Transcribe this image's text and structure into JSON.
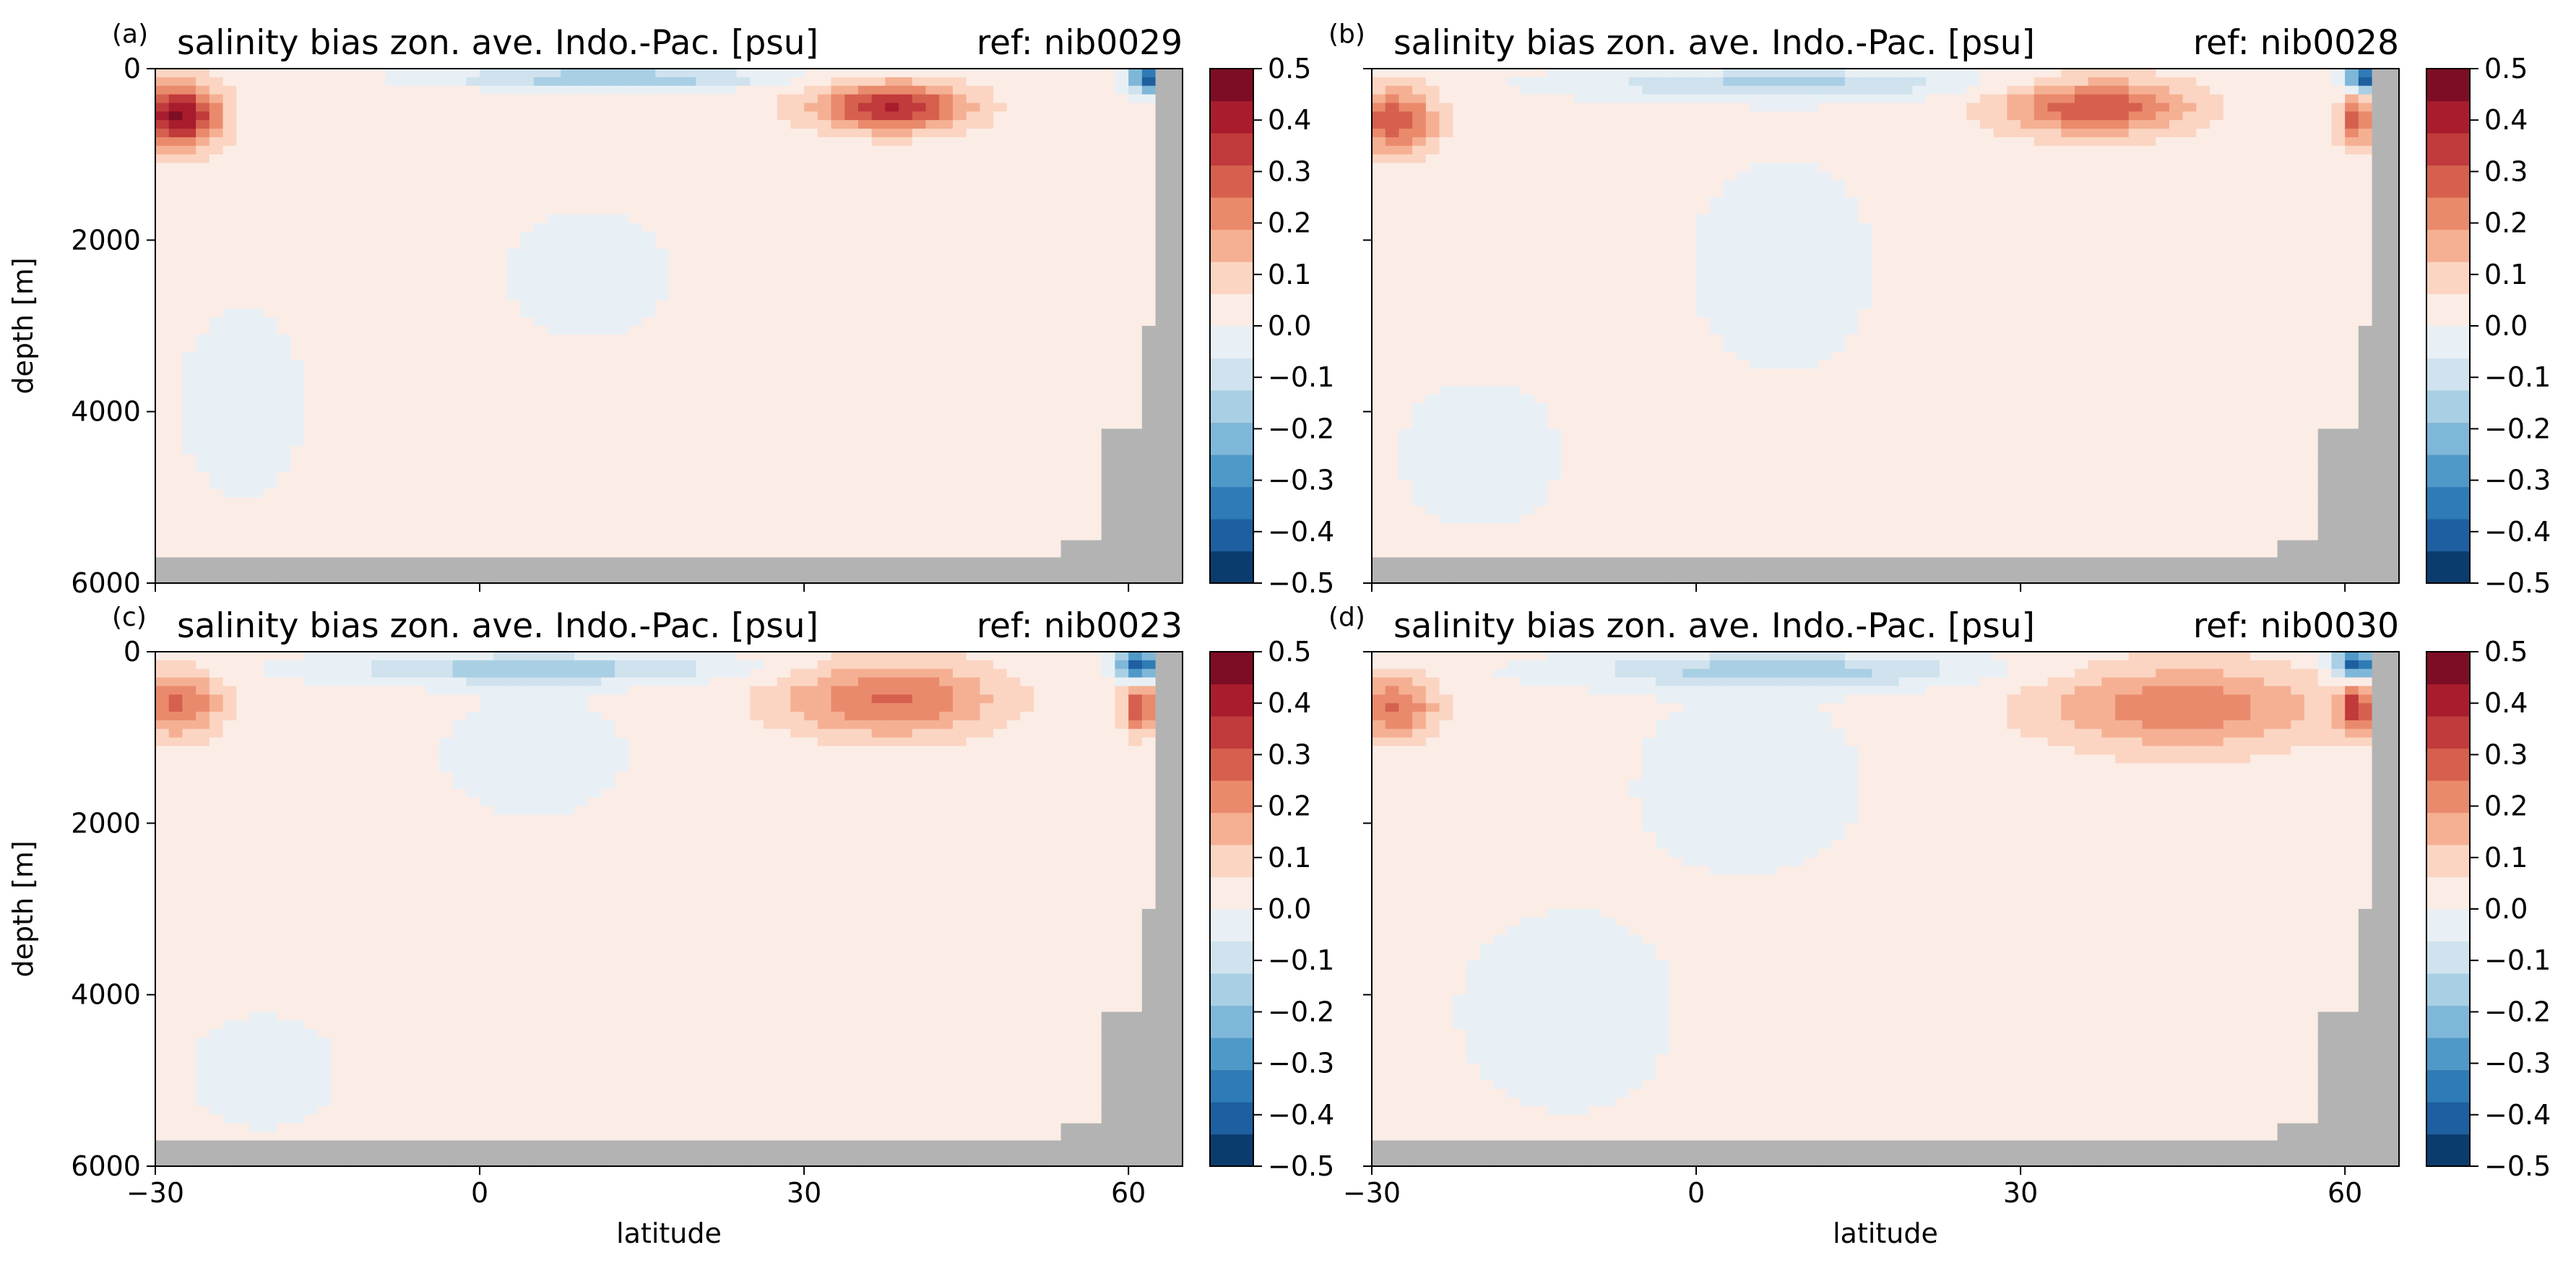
{
  "figure": {
    "panels": [
      {
        "letter": "(a)",
        "title": "salinity bias zon. ave. Indo.-Pac. [psu]",
        "ref": "ref: nib0029"
      },
      {
        "letter": "(b)",
        "title": "salinity bias zon. ave. Indo.-Pac. [psu]",
        "ref": "ref: nib0028"
      },
      {
        "letter": "(c)",
        "title": "salinity bias zon. ave. Indo.-Pac. [psu]",
        "ref": "ref: nib0023"
      },
      {
        "letter": "(d)",
        "title": "salinity bias zon. ave. Indo.-Pac. [psu]",
        "ref": "ref: nib0030"
      }
    ],
    "xlabel": "latitude",
    "ylabel": "depth [m]"
  },
  "chart_data": {
    "type": "heatmap",
    "xlim": [
      -30,
      65
    ],
    "ylim": [
      6000,
      0
    ],
    "xticks": [
      -30,
      0,
      30,
      60
    ],
    "yticks": [
      0,
      2000,
      4000,
      6000
    ],
    "colorbar": {
      "range": [
        -0.5,
        0.5
      ],
      "ticks": [
        "0.5",
        "0.4",
        "0.3",
        "0.2",
        "0.1",
        "0.0",
        "−0.1",
        "−0.2",
        "−0.3",
        "−0.4",
        "−0.5"
      ],
      "levels": [
        "#0b3c6e",
        "#1d5fa0",
        "#2f7bb6",
        "#4f99c8",
        "#7fb7d8",
        "#a9cfe4",
        "#cfe2ee",
        "#e8f0f5",
        "#fbece6",
        "#fbd5c2",
        "#f5b093",
        "#ea8a6c",
        "#d6604e",
        "#c13a3c",
        "#a81c2e",
        "#7d0d24"
      ]
    },
    "land_color": "#b3b3b3",
    "panels": [
      {
        "id": "a",
        "background": 0.02,
        "blobs": [
          {
            "lat": -28,
            "depth": 550,
            "wlat": 4,
            "wdepth": 380,
            "v": 0.42
          },
          {
            "lat": 38,
            "depth": 450,
            "wlat": 7,
            "wdepth": 280,
            "v": 0.36
          },
          {
            "lat": 12,
            "depth": 110,
            "wlat": 14,
            "wdepth": 110,
            "v": -0.22
          },
          {
            "lat": 10,
            "depth": 2400,
            "wlat": 9,
            "wdepth": 900,
            "v": -0.04
          },
          {
            "lat": -22,
            "depth": 3900,
            "wlat": 7,
            "wdepth": 1300,
            "v": -0.04
          },
          {
            "lat": 62,
            "depth": 120,
            "wlat": 2,
            "wdepth": 150,
            "v": -0.45
          }
        ]
      },
      {
        "id": "b",
        "background": 0.02,
        "blobs": [
          {
            "lat": -28,
            "depth": 600,
            "wlat": 4,
            "wdepth": 380,
            "v": 0.28
          },
          {
            "lat": 37,
            "depth": 450,
            "wlat": 9,
            "wdepth": 330,
            "v": 0.28
          },
          {
            "lat": 8,
            "depth": 180,
            "wlat": 18,
            "wdepth": 170,
            "v": -0.16
          },
          {
            "lat": 8,
            "depth": 2300,
            "wlat": 10,
            "wdepth": 1500,
            "v": -0.04
          },
          {
            "lat": -20,
            "depth": 4500,
            "wlat": 9,
            "wdepth": 1000,
            "v": -0.04
          },
          {
            "lat": 62,
            "depth": 120,
            "wlat": 2,
            "wdepth": 150,
            "v": -0.45
          },
          {
            "lat": 61,
            "depth": 600,
            "wlat": 1.5,
            "wdepth": 300,
            "v": 0.3
          }
        ]
      },
      {
        "id": "c",
        "background": 0.02,
        "blobs": [
          {
            "lat": -28,
            "depth": 600,
            "wlat": 4,
            "wdepth": 380,
            "v": 0.25
          },
          {
            "lat": 38,
            "depth": 550,
            "wlat": 10,
            "wdepth": 450,
            "v": 0.24
          },
          {
            "lat": 5,
            "depth": 200,
            "wlat": 18,
            "wdepth": 170,
            "v": -0.18
          },
          {
            "lat": 5,
            "depth": 1200,
            "wlat": 8,
            "wdepth": 700,
            "v": -0.06
          },
          {
            "lat": -20,
            "depth": 4900,
            "wlat": 8,
            "wdepth": 800,
            "v": -0.04
          },
          {
            "lat": 61,
            "depth": 150,
            "wlat": 2,
            "wdepth": 180,
            "v": -0.45
          },
          {
            "lat": 61,
            "depth": 650,
            "wlat": 1.5,
            "wdepth": 300,
            "v": 0.3
          }
        ]
      },
      {
        "id": "d",
        "background": 0.02,
        "blobs": [
          {
            "lat": -28,
            "depth": 650,
            "wlat": 4,
            "wdepth": 380,
            "v": 0.24
          },
          {
            "lat": 45,
            "depth": 650,
            "wlat": 13,
            "wdepth": 500,
            "v": 0.22
          },
          {
            "lat": 8,
            "depth": 220,
            "wlat": 18,
            "wdepth": 200,
            "v": -0.18
          },
          {
            "lat": 5,
            "depth": 1500,
            "wlat": 10,
            "wdepth": 1000,
            "v": -0.06
          },
          {
            "lat": -12,
            "depth": 4200,
            "wlat": 12,
            "wdepth": 1400,
            "v": -0.04
          },
          {
            "lat": 61,
            "depth": 150,
            "wlat": 2,
            "wdepth": 180,
            "v": -0.45
          },
          {
            "lat": 61,
            "depth": 650,
            "wlat": 1.5,
            "wdepth": 300,
            "v": 0.3
          }
        ]
      }
    ]
  }
}
